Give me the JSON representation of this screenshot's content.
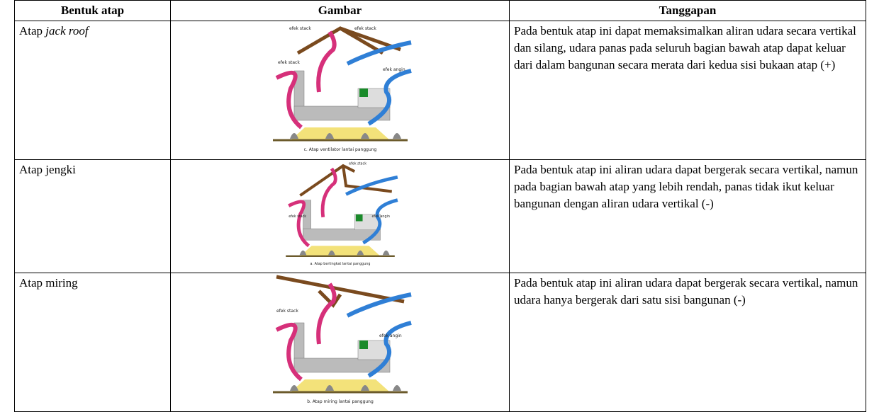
{
  "header": [
    "Bentuk atap",
    "Gambar",
    "Tanggapan"
  ],
  "rows": [
    {
      "name": "Atap",
      "name_italic": "jack roof",
      "figure": {
        "labels": [
          "efek stack",
          "efek stack",
          "efek stack",
          "efek angin"
        ],
        "caption": "c. Atap ventilator lantai panggung"
      },
      "response": "Pada bentuk atap ini dapat memaksimalkan aliran udara secara vertikal dan silang, udara panas pada seluruh bagian bawah atap dapat keluar dari dalam bangunan secara merata dari kedua sisi bukaan atap (+)"
    },
    {
      "name": "Atap jengki",
      "figure": {
        "labels": [
          "efek stack",
          "efek stack",
          "efek angin"
        ],
        "caption": "a. Atap bertingkat lantai panggung"
      },
      "response": "Pada bentuk atap ini aliran udara dapat bergerak secara vertikal, namun pada bagian bawah atap yang lebih rendah, panas tidak ikut keluar bangunan dengan aliran udara vertikal (-)"
    },
    {
      "name": "Atap miring",
      "figure": {
        "labels": [
          "efek stack",
          "efek angin"
        ],
        "caption": "b. Atap miring lantai panggung"
      },
      "response": "Pada bentuk atap ini aliran udara dapat bergerak secara vertikal, namun udara hanya bergerak dari satu sisi bangunan (-)"
    }
  ]
}
